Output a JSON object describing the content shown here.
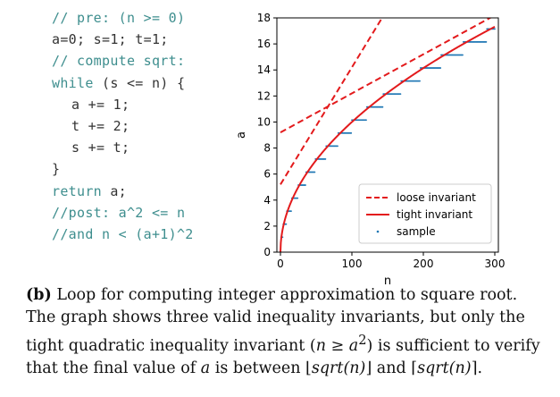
{
  "code": {
    "lines": [
      {
        "indent": 0,
        "kind": "comment",
        "text": "// pre: (n >= 0)"
      },
      {
        "indent": 0,
        "kind": "code",
        "text": "a=0; s=1; t=1;"
      },
      {
        "indent": 0,
        "kind": "comment",
        "text": "// compute sqrt:"
      },
      {
        "indent": 0,
        "kind": "while",
        "keyword": "while",
        "text": " (s <= n) {"
      },
      {
        "indent": 1,
        "kind": "code",
        "text": "a += 1;"
      },
      {
        "indent": 1,
        "kind": "code",
        "text": "t += 2;"
      },
      {
        "indent": 1,
        "kind": "code",
        "text": "s += t;"
      },
      {
        "indent": 0,
        "kind": "code",
        "text": "}"
      },
      {
        "indent": 0,
        "kind": "return",
        "keyword": "return",
        "text": " a;"
      },
      {
        "indent": 0,
        "kind": "comment",
        "text": "//post: a^2 <= n"
      },
      {
        "indent": 0,
        "kind": "comment",
        "text": "//and n < (a+1)^2"
      }
    ]
  },
  "chart_data": {
    "type": "line",
    "xlabel": "n",
    "ylabel": "a",
    "xlim": [
      -5,
      305
    ],
    "ylim": [
      0,
      18
    ],
    "xticks": [
      0,
      100,
      200,
      300
    ],
    "yticks": [
      0,
      2,
      4,
      6,
      8,
      10,
      12,
      14,
      16,
      18
    ],
    "grid": false,
    "legend_position": "lower-right",
    "series": [
      {
        "name": "loose invariant",
        "style": "dashed",
        "color": "#e31a1c",
        "lines": [
          {
            "intercept": 5.2,
            "slope": 0.09
          },
          {
            "intercept": 9.2,
            "slope": 0.03
          }
        ]
      },
      {
        "name": "tight invariant",
        "style": "solid",
        "color": "#e31a1c",
        "function": "sqrt(n)"
      },
      {
        "name": "sample",
        "style": "dots",
        "color": "#1f77b4",
        "n_min": 1,
        "n_max": 300,
        "function": "floor(sqrt(n))"
      }
    ]
  },
  "caption": {
    "label": "(b)",
    "text_1": " Loop for computing integer approximation to square root. The graph shows three valid inequality invariants, but only the tight quadratic inequality invariant (",
    "math_lhs": "n",
    "math_rel": " ≥ ",
    "math_rhs": "a",
    "math_sup": "2",
    "text_2": ") is sufficient to verify that the final value of ",
    "math_a": "a",
    "text_3": " is between ",
    "floor_open": "⌊",
    "floor_expr": "sqrt(n)",
    "floor_close": "⌋",
    "text_4": " and ",
    "ceil_open": "⌈",
    "ceil_expr": "sqrt(n)",
    "ceil_close": "⌉",
    "text_5": "."
  }
}
